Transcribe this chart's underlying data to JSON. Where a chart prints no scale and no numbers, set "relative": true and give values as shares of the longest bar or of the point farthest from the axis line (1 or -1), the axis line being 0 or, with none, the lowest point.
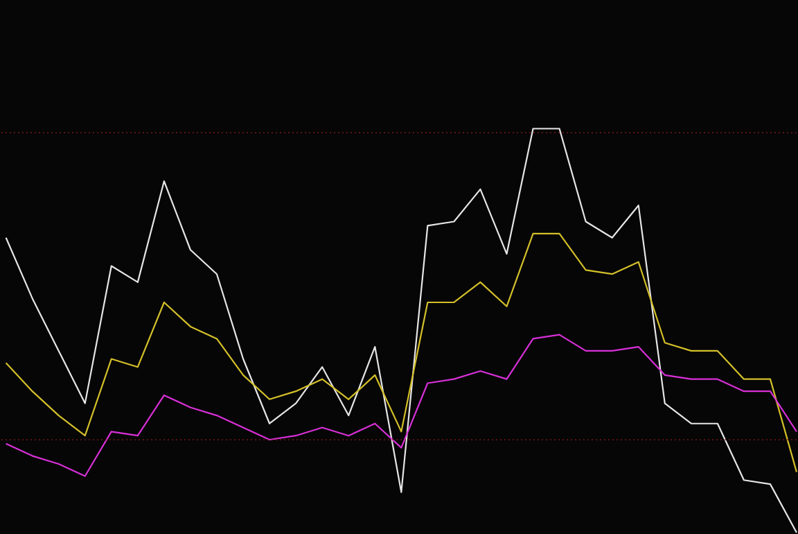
{
  "chart_data": {
    "type": "line",
    "relative": true,
    "line_style": "solid",
    "marker": "none",
    "categories": [
      null,
      null,
      null,
      null,
      null,
      null,
      null,
      null,
      null,
      null,
      null,
      null,
      null,
      null,
      null,
      null,
      null,
      null,
      null,
      null,
      null,
      null,
      null,
      null,
      null,
      null,
      null,
      null,
      null,
      null,
      null
    ],
    "series": [
      {
        "color": "#e6e6e6",
        "values": [
          0.73,
          0.58,
          0.45,
          0.32,
          0.66,
          0.62,
          0.87,
          0.7,
          0.64,
          0.43,
          0.27,
          0.32,
          0.41,
          0.29,
          0.46,
          0.1,
          0.76,
          0.77,
          0.85,
          0.69,
          1.0,
          1.0,
          0.77,
          0.73,
          0.81,
          0.32,
          0.27,
          0.27,
          0.13,
          0.12,
          0.0
        ]
      },
      {
        "color": "#d4c02a",
        "values": [
          0.42,
          0.35,
          0.29,
          0.24,
          0.43,
          0.41,
          0.57,
          0.51,
          0.48,
          0.39,
          0.33,
          0.35,
          0.38,
          0.33,
          0.39,
          0.25,
          0.57,
          0.57,
          0.62,
          0.56,
          0.74,
          0.74,
          0.65,
          0.64,
          0.67,
          0.47,
          0.45,
          0.45,
          0.38,
          0.38,
          0.15
        ]
      },
      {
        "color": "#d830d8",
        "values": [
          0.22,
          0.19,
          0.17,
          0.14,
          0.25,
          0.24,
          0.34,
          0.31,
          0.29,
          0.26,
          0.23,
          0.24,
          0.26,
          0.24,
          0.27,
          0.21,
          0.37,
          0.38,
          0.4,
          0.38,
          0.48,
          0.49,
          0.45,
          0.45,
          0.46,
          0.39,
          0.38,
          0.38,
          0.35,
          0.35,
          0.25
        ]
      }
    ],
    "ref_lines": [
      {
        "axis": "y",
        "value": 0.99,
        "color": "#8b1a1a",
        "line_style": "dotted"
      },
      {
        "axis": "y",
        "value": 0.23,
        "color": "#8b1a1a",
        "line_style": "dotted"
      }
    ]
  }
}
